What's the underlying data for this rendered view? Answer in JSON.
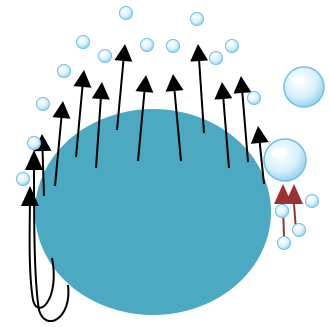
{
  "colors": {
    "background": "#ffffff",
    "cell": "#4BA9C2",
    "arrow_black": "#000000",
    "arrow_red": "#993333",
    "bubble_fill": "#d8f0fb",
    "bubble_rim": "#6fc1e6",
    "bubble_highlight": "#ffffff"
  },
  "elements": {
    "cell": "cell-body",
    "black_arrows": "upward-arrows",
    "red_arrows": "red-arrows",
    "bubbles": "bubbles"
  },
  "counts": {
    "black_arrows_above_cell": 13,
    "black_arrows_left_looping": 2,
    "red_arrows": 2,
    "small_bubbles": 20,
    "large_bubbles": 2
  }
}
